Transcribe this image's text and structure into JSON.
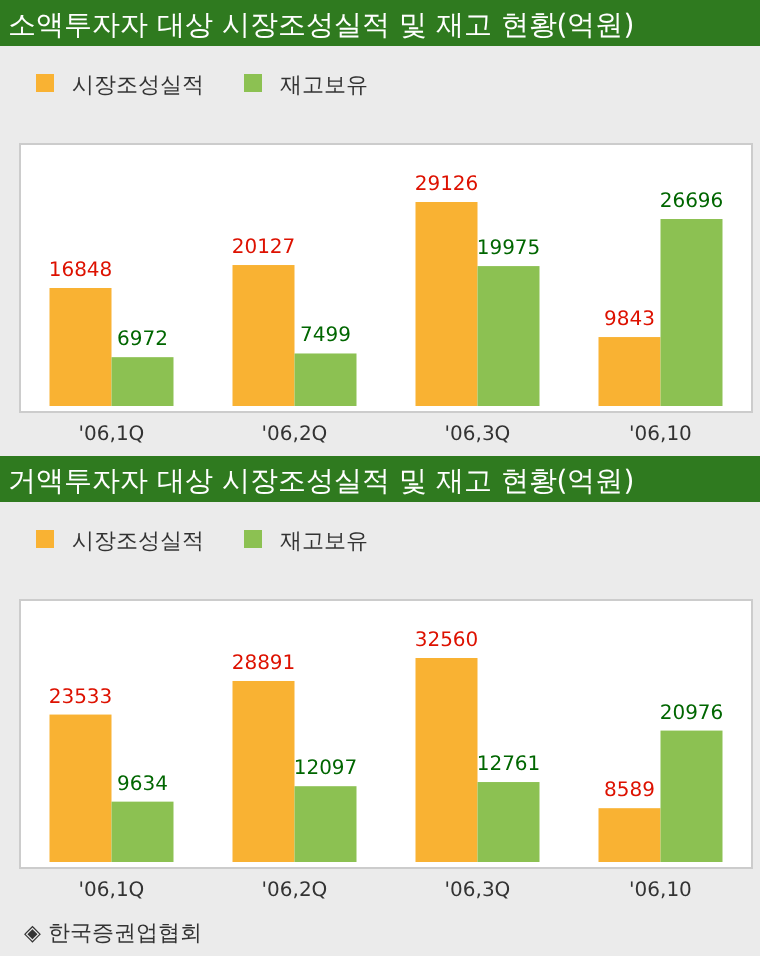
{
  "chart_data": [
    {
      "type": "bar",
      "title": "소액투자자 대상 시장조성실적 및 재고 현황(억원)",
      "categories": [
        "'06,1Q",
        "'06,2Q",
        "'06,3Q",
        "'06,10"
      ],
      "series": [
        {
          "name": "시장조성실적",
          "color": "#f9b233",
          "values": [
            16848,
            20127,
            29126,
            9843
          ]
        },
        {
          "name": "재고보유",
          "color": "#8cc152",
          "values": [
            6972,
            7499,
            19975,
            26696
          ]
        }
      ],
      "data_labels": true,
      "legend": "top left"
    },
    {
      "type": "bar",
      "title": "거액투자자 대상 시장조성실적 및 재고 현황(억원)",
      "categories": [
        "'06,1Q",
        "'06,2Q",
        "'06,3Q",
        "'06,10"
      ],
      "series": [
        {
          "name": "시장조성실적",
          "color": "#f9b233",
          "values": [
            23533,
            28891,
            32560,
            8589
          ]
        },
        {
          "name": "재고보유",
          "color": "#8cc152",
          "values": [
            9634,
            12097,
            12761,
            20976
          ]
        }
      ],
      "data_labels": true,
      "legend": "top left",
      "annotations": [
        "◈ 한국증권업협회"
      ]
    }
  ]
}
